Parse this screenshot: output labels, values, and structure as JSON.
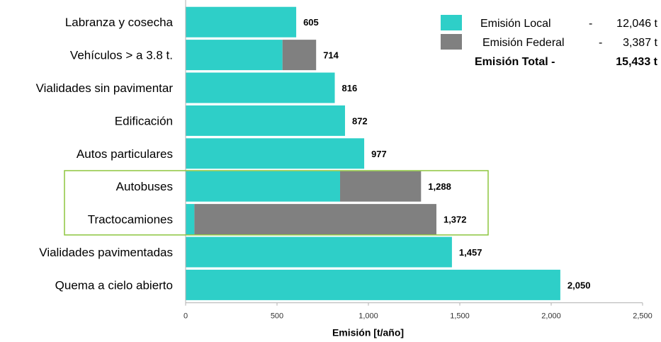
{
  "chart_data": {
    "type": "bar",
    "orientation": "horizontal",
    "stacked": true,
    "categories": [
      "Labranza y cosecha",
      "Vehículos > a 3.8 t.",
      "Vialidades sin pavimentar",
      "Edificación",
      "Autos particulares",
      "Autobuses",
      "Tractocamiones",
      "Vialidades pavimentadas",
      "Quema a cielo abierto"
    ],
    "series": [
      {
        "name": "Emisión Local",
        "color": "#2ECFC8",
        "values": [
          605,
          530,
          816,
          872,
          977,
          845,
          48,
          1457,
          2050
        ]
      },
      {
        "name": "Emisión Federal",
        "color": "#808080",
        "values": [
          0,
          184,
          0,
          0,
          0,
          443,
          1324,
          0,
          0
        ]
      }
    ],
    "totals": [
      605,
      714,
      816,
      872,
      977,
      1288,
      1372,
      1457,
      2050
    ],
    "total_labels": [
      "605",
      "714",
      "816",
      "872",
      "977",
      "1,288",
      "1,372",
      "1,457",
      "2,050"
    ],
    "xlabel": "Emisión [t/año]",
    "xlim": [
      0,
      2500
    ],
    "xticks": [
      0,
      500,
      1000,
      1500,
      2000,
      2500
    ],
    "xtick_labels": [
      "0",
      "500",
      "1,000",
      "1,500",
      "2,000",
      "2,500"
    ],
    "highlight": {
      "categories": [
        "Autobuses",
        "Tractocamiones"
      ],
      "color": "#8DC63F"
    },
    "legend": {
      "placement": "top-right",
      "entries": [
        {
          "label": "Emisión Local",
          "sep": "-",
          "value": "12,046 t",
          "color": "#2ECFC8"
        },
        {
          "label": "Emisión Federal",
          "sep": "-",
          "value": "3,387 t",
          "color": "#808080"
        }
      ],
      "total": {
        "label": "Emisión Total -",
        "value": "15,433 t"
      }
    }
  }
}
